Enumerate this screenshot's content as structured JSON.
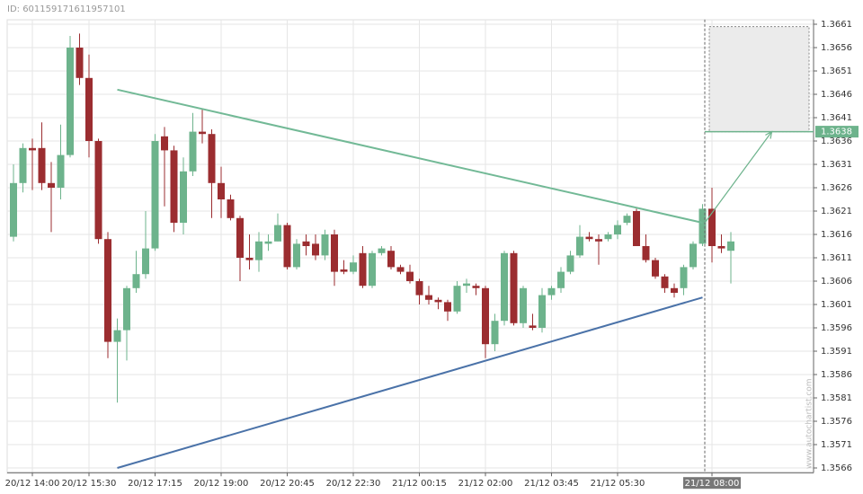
{
  "chart_data": {
    "type": "candlestick",
    "id_label": "ID: 601159171611957101",
    "watermark": "www.autochartist.com",
    "categories": [
      null,
      null,
      "20/12 14:00",
      null,
      null,
      null,
      null,
      null,
      "20/12 15:30",
      null,
      null,
      null,
      null,
      null,
      null,
      "20/12 17:15",
      null,
      null,
      null,
      null,
      null,
      null,
      "20/12 19:00",
      null,
      null,
      null,
      null,
      null,
      null,
      "20/12 20:45",
      null,
      null,
      null,
      null,
      null,
      null,
      "20/12 22:30",
      null,
      null,
      null,
      null,
      null,
      null,
      "21/12 00:15",
      null,
      null,
      null,
      null,
      null,
      null,
      "21/12 02:00",
      null,
      null,
      null,
      null,
      null,
      null,
      "21/12 03:45",
      null,
      null,
      null,
      null,
      null,
      null,
      "21/12 05:30",
      null,
      null,
      null,
      null,
      null,
      null,
      null,
      null,
      null,
      "21/12 08:00",
      null,
      null
    ],
    "open": [
      1.36155,
      1.3627,
      1.36345,
      1.36345,
      1.3627,
      1.3626,
      1.3633,
      1.3656,
      1.36495,
      1.3636,
      1.3615,
      1.3593,
      1.35955,
      1.36045,
      1.36075,
      1.3613,
      1.3637,
      1.3634,
      1.36185,
      1.36295,
      1.3638,
      1.36375,
      1.3627,
      1.36235,
      1.36195,
      1.3611,
      1.36105,
      1.3614,
      1.36145,
      1.3618,
      1.3609,
      1.36145,
      1.3614,
      1.36115,
      1.3616,
      1.36085,
      1.3608,
      1.3612,
      1.3605,
      1.3612,
      1.36125,
      1.3609,
      1.3608,
      1.3606,
      1.3603,
      1.3602,
      1.36015,
      1.35995,
      1.3605,
      1.3605,
      1.36045,
      1.35925,
      1.35975,
      1.3612,
      1.3597,
      1.35965,
      1.3596,
      1.3603,
      1.36045,
      1.3608,
      1.36115,
      1.36155,
      1.3615,
      1.3615,
      1.3616,
      1.36185,
      1.3621,
      1.36135,
      1.36105,
      1.3607,
      1.36045,
      1.36045,
      1.3609,
      1.3614,
      1.36215,
      1.36135,
      1.36125
    ],
    "high": [
      1.3631,
      1.36355,
      1.36365,
      1.364,
      1.36315,
      1.36395,
      1.36585,
      1.3659,
      1.36545,
      1.36365,
      1.36165,
      1.3598,
      1.3605,
      1.36125,
      1.3621,
      1.36375,
      1.3639,
      1.3635,
      1.36325,
      1.3642,
      1.3643,
      1.36385,
      1.36305,
      1.36245,
      1.362,
      1.3616,
      1.36165,
      1.3616,
      1.36205,
      1.36185,
      1.3615,
      1.3616,
      1.3616,
      1.3617,
      1.3617,
      1.36105,
      1.36115,
      1.36135,
      1.36125,
      1.36135,
      1.36135,
      1.36095,
      1.36095,
      1.36065,
      1.3605,
      1.36025,
      1.3602,
      1.3606,
      1.36065,
      1.36055,
      1.3605,
      1.3599,
      1.36125,
      1.36125,
      1.3605,
      1.3599,
      1.36045,
      1.3605,
      1.3609,
      1.36125,
      1.3618,
      1.36165,
      1.3616,
      1.36165,
      1.3619,
      1.36205,
      1.36215,
      1.3616,
      1.3611,
      1.36075,
      1.36055,
      1.36095,
      1.36145,
      1.36225,
      1.3626,
      1.3616,
      1.36165
    ],
    "low": [
      1.36145,
      1.3625,
      1.36255,
      1.36255,
      1.36165,
      1.36235,
      1.36325,
      1.3648,
      1.36325,
      1.3614,
      1.35895,
      1.358,
      1.3589,
      1.36035,
      1.36065,
      1.36125,
      1.3622,
      1.36165,
      1.3616,
      1.36285,
      1.36355,
      1.36195,
      1.36195,
      1.3619,
      1.3606,
      1.36085,
      1.3608,
      1.36125,
      1.36145,
      1.36085,
      1.36085,
      1.36115,
      1.36105,
      1.36105,
      1.3605,
      1.36075,
      1.36075,
      1.36045,
      1.36045,
      1.36115,
      1.36085,
      1.36075,
      1.36055,
      1.3601,
      1.3601,
      1.36,
      1.35975,
      1.3599,
      1.36035,
      1.3603,
      1.35895,
      1.3591,
      1.35965,
      1.35965,
      1.3596,
      1.35955,
      1.3595,
      1.3602,
      1.36035,
      1.36075,
      1.3611,
      1.36145,
      1.36095,
      1.36145,
      1.3615,
      1.3618,
      1.36135,
      1.361,
      1.36065,
      1.36035,
      1.36025,
      1.3603,
      1.36085,
      1.36135,
      1.361,
      1.3612,
      1.36055
    ],
    "close": [
      1.3627,
      1.36345,
      1.3634,
      1.3627,
      1.3626,
      1.3633,
      1.3656,
      1.36495,
      1.3636,
      1.3615,
      1.3593,
      1.35955,
      1.36045,
      1.36075,
      1.3613,
      1.3636,
      1.3634,
      1.36185,
      1.36295,
      1.3638,
      1.36375,
      1.3627,
      1.36235,
      1.36195,
      1.3611,
      1.36105,
      1.36145,
      1.36145,
      1.3618,
      1.3609,
      1.3614,
      1.36135,
      1.36115,
      1.3616,
      1.3608,
      1.3608,
      1.361,
      1.3605,
      1.3612,
      1.3613,
      1.3609,
      1.3608,
      1.3606,
      1.3603,
      1.3602,
      1.36015,
      1.35995,
      1.3605,
      1.36055,
      1.36045,
      1.35925,
      1.35975,
      1.3612,
      1.3597,
      1.36045,
      1.3596,
      1.3603,
      1.36045,
      1.3608,
      1.36115,
      1.36155,
      1.3615,
      1.36145,
      1.3616,
      1.3618,
      1.362,
      1.36135,
      1.36105,
      1.3607,
      1.36045,
      1.36035,
      1.3609,
      1.3614,
      1.36215,
      1.36135,
      1.3613,
      1.36145
    ],
    "up_color": "#6db38c",
    "down_color": "#9b2d30",
    "ylim": [
      1.3565,
      1.3662
    ],
    "yticks": [
      1.3566,
      1.3571,
      1.3576,
      1.3581,
      1.3586,
      1.3591,
      1.3596,
      1.3601,
      1.3606,
      1.3611,
      1.3616,
      1.3621,
      1.3626,
      1.3631,
      1.3636,
      1.3641,
      1.3646,
      1.3651,
      1.3656,
      1.3661
    ],
    "grid": true,
    "highlight_tick": 74,
    "trendlines": [
      {
        "color": "#72b996",
        "x": [
          11,
          73
        ],
        "y": [
          1.3647,
          1.36185
        ]
      },
      {
        "color": "#4a72a8",
        "x": [
          11,
          73
        ],
        "y": [
          1.3566,
          1.36025
        ]
      }
    ],
    "forecast": {
      "start": 73,
      "low": 1.3638,
      "high": 1.36605,
      "color": "#6db38c"
    },
    "target": 1.3638
  }
}
